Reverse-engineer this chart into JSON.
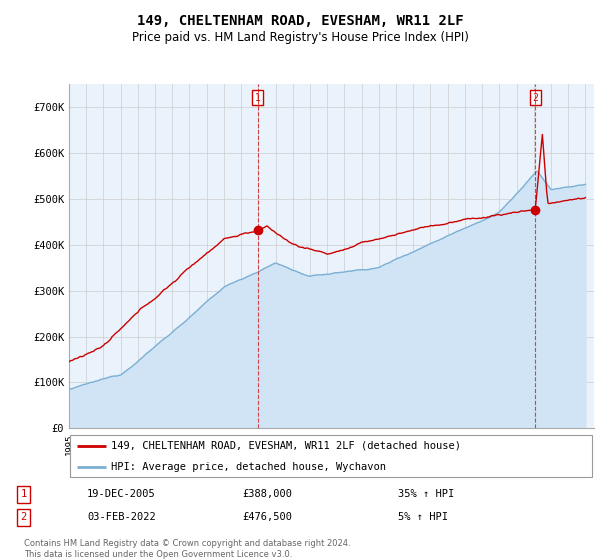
{
  "title": "149, CHELTENHAM ROAD, EVESHAM, WR11 2LF",
  "subtitle": "Price paid vs. HM Land Registry's House Price Index (HPI)",
  "ylim": [
    0,
    750000
  ],
  "yticks": [
    0,
    100000,
    200000,
    300000,
    400000,
    500000,
    600000,
    700000
  ],
  "ytick_labels": [
    "£0",
    "£100K",
    "£200K",
    "£300K",
    "£400K",
    "£500K",
    "£600K",
    "£700K"
  ],
  "x_start_year": 1995,
  "x_end_year": 2025,
  "hpi_color": "#7bafd4",
  "hpi_fill_color": "#d0e4f5",
  "price_color": "#cc0000",
  "sale1_year": 2005.97,
  "sale1_price": 388000,
  "sale1_date": "19-DEC-2005",
  "sale1_pct": "35%",
  "sale2_year": 2022.09,
  "sale2_price": 476500,
  "sale2_date": "03-FEB-2022",
  "sale2_pct": "5%",
  "legend_label1": "149, CHELTENHAM ROAD, EVESHAM, WR11 2LF (detached house)",
  "legend_label2": "HPI: Average price, detached house, Wychavon",
  "footnote": "Contains HM Land Registry data © Crown copyright and database right 2024.\nThis data is licensed under the Open Government Licence v3.0.",
  "background_color": "#ffffff",
  "grid_color": "#cccccc",
  "plot_bg_color": "#eaf3fb"
}
